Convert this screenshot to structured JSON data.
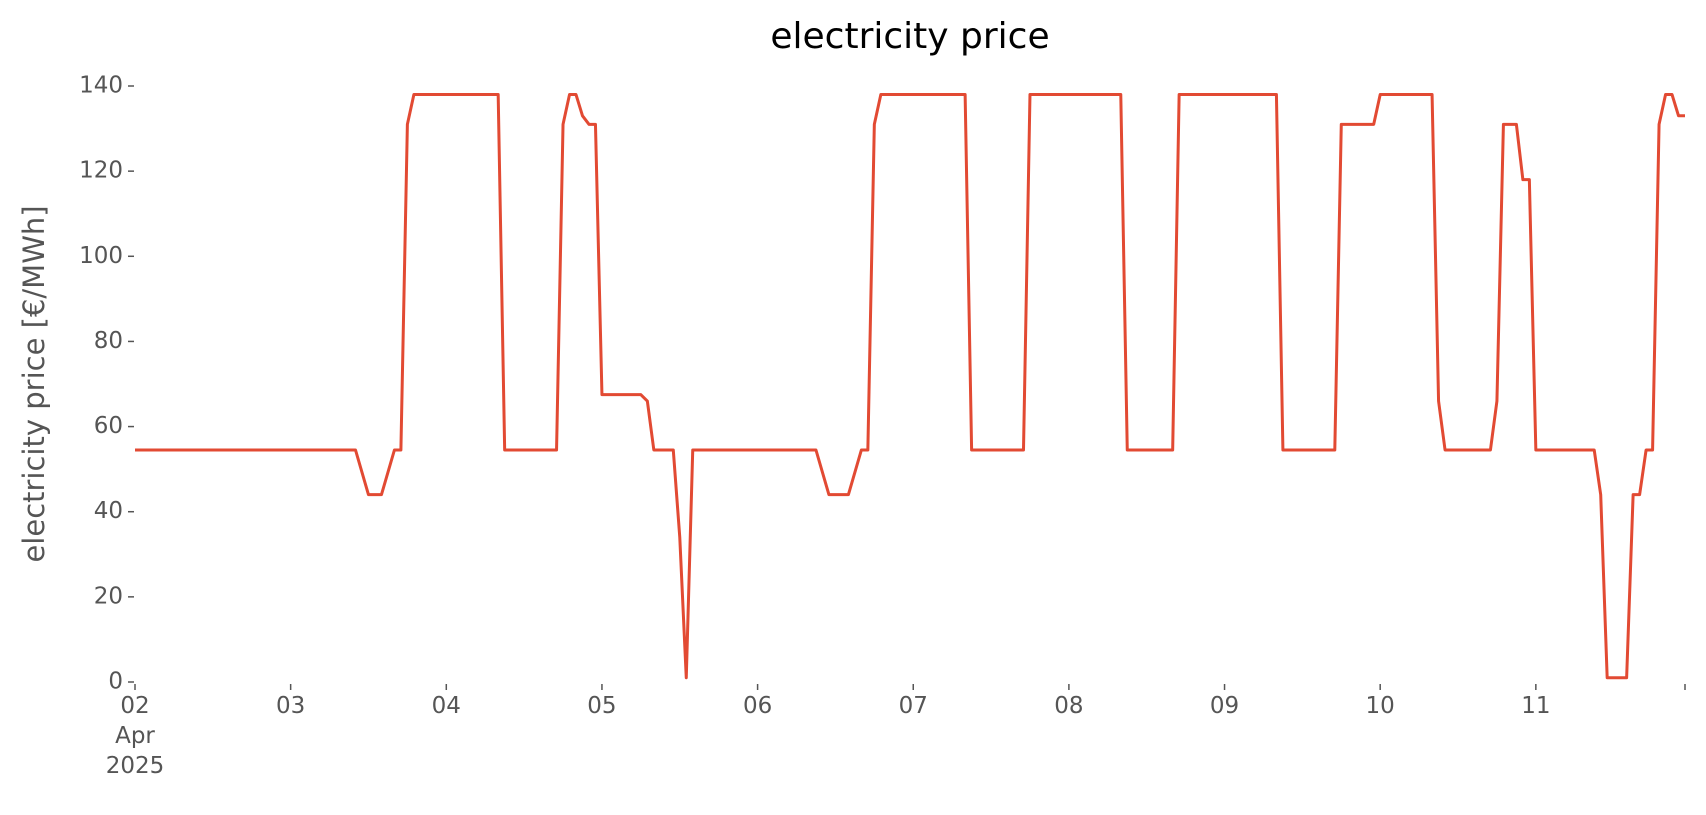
{
  "chart_data": {
    "type": "line",
    "title": "electricity price",
    "ylabel": "electricity price [€/MWh]",
    "x": [
      2,
      3.4167,
      3.5,
      3.5833,
      3.6667,
      3.7083,
      3.75,
      3.7917,
      4.3333,
      4.375,
      4.7083,
      4.75,
      4.7917,
      4.8333,
      4.875,
      4.9167,
      4.9583,
      5,
      5.25,
      5.2917,
      5.3333,
      5.4583,
      5.5,
      5.5417,
      5.5833,
      6.375,
      6.4583,
      6.5833,
      6.6667,
      6.7083,
      6.75,
      6.7917,
      7.3333,
      7.375,
      7.7083,
      7.75,
      8.3333,
      8.375,
      8.6667,
      8.7083,
      9.3333,
      9.375,
      9.7083,
      9.75,
      9.9583,
      10,
      10.3333,
      10.375,
      10.4167,
      10.7083,
      10.75,
      10.7917,
      10.875,
      10.9167,
      10.9583,
      11,
      11.375,
      11.4167,
      11.4583,
      11.5833,
      11.625,
      11.6667,
      11.7083,
      11.75,
      11.7917,
      11.8333,
      11.875,
      11.9167,
      11.9583
    ],
    "series": [
      {
        "name": "electricity price",
        "color": "#E24A33",
        "values": [
          54.5,
          54.5,
          44,
          44,
          54.5,
          54.5,
          131,
          138,
          138,
          54.5,
          54.5,
          131,
          138,
          138,
          133,
          131,
          131,
          67.5,
          67.5,
          66,
          54.5,
          54.5,
          34,
          1,
          54.5,
          54.5,
          44,
          44,
          54.5,
          54.5,
          131,
          138,
          138,
          54.5,
          54.5,
          138,
          138,
          54.5,
          54.5,
          138,
          138,
          54.5,
          54.5,
          131,
          131,
          138,
          138,
          66,
          54.5,
          54.5,
          66,
          131,
          131,
          118,
          118,
          54.5,
          54.5,
          44,
          1,
          1,
          44,
          44,
          54.5,
          54.5,
          131,
          138,
          138,
          133,
          133
        ]
      }
    ],
    "xlim": [
      2,
      11.9583
    ],
    "xticks": [
      {
        "value": 2,
        "label": "02\nApr\n2025"
      },
      {
        "value": 3,
        "label": "03"
      },
      {
        "value": 4,
        "label": "04"
      },
      {
        "value": 5,
        "label": "05"
      },
      {
        "value": 6,
        "label": "06"
      },
      {
        "value": 7,
        "label": "07"
      },
      {
        "value": 8,
        "label": "08"
      },
      {
        "value": 9,
        "label": "09"
      },
      {
        "value": 10,
        "label": "10"
      },
      {
        "value": 11,
        "label": "11"
      }
    ],
    "ylim": [
      0,
      140
    ],
    "yticks": [
      0,
      20,
      40,
      60,
      80,
      100,
      120,
      140
    ],
    "grid": false
  }
}
